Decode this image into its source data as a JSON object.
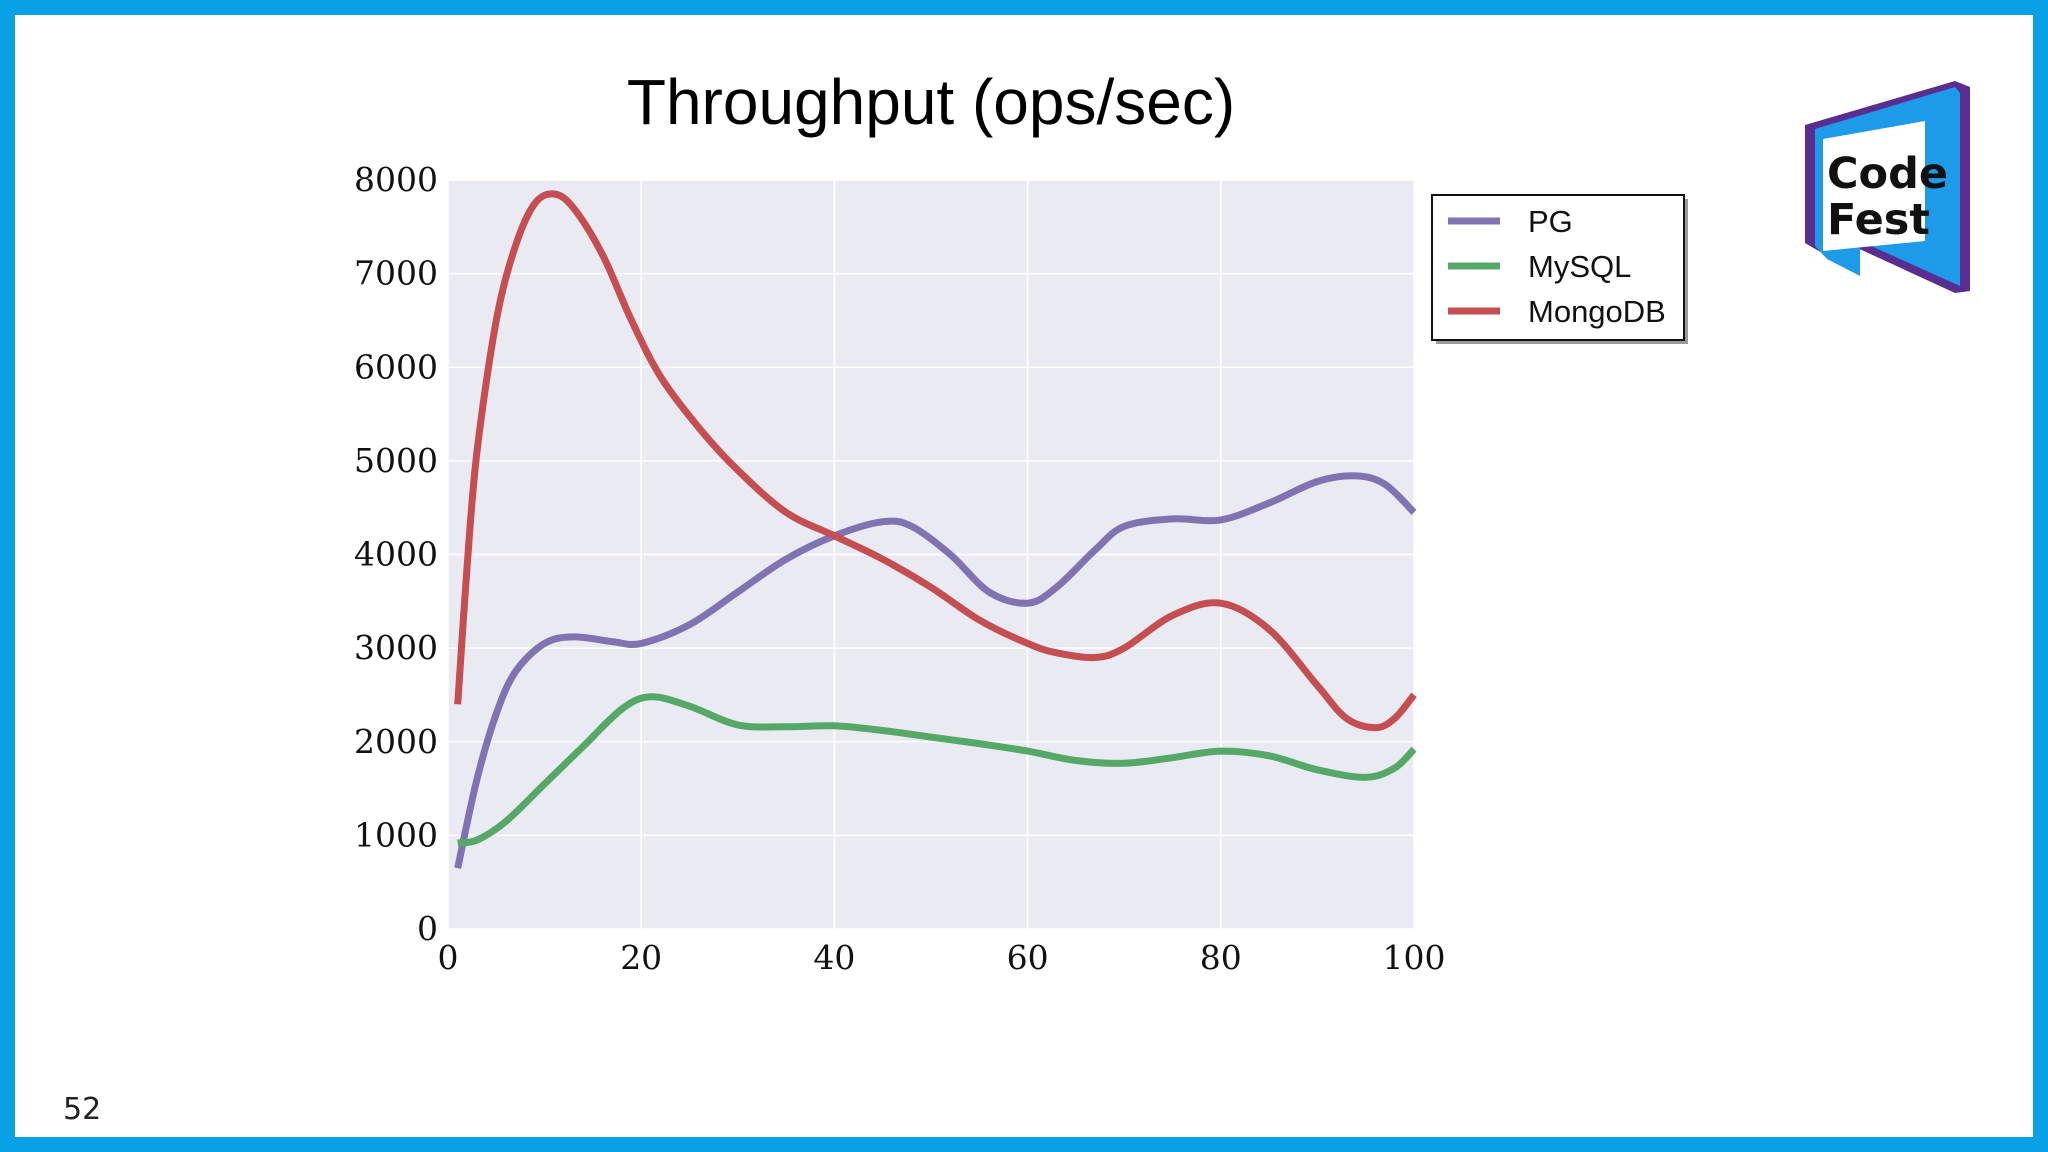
{
  "page": {
    "number": "52"
  },
  "logo": {
    "line1": "Code",
    "line2": "Fest"
  },
  "chart_data": {
    "type": "line",
    "title": "Throughput (ops/sec)",
    "xlabel": "",
    "ylabel": "",
    "xlim": [
      0,
      100
    ],
    "ylim": [
      0,
      8000
    ],
    "xticks": [
      "0",
      "20",
      "40",
      "60",
      "80",
      "100"
    ],
    "yticks": [
      "0",
      "1000",
      "2000",
      "3000",
      "4000",
      "5000",
      "6000",
      "7000",
      "8000"
    ],
    "grid": true,
    "legend_position": "upper-right-outside",
    "series": [
      {
        "name": "PG",
        "color": "#8172b2",
        "x": [
          1,
          3,
          5,
          7,
          10,
          13,
          17,
          20,
          25,
          30,
          35,
          40,
          45,
          48,
          52,
          56,
          60,
          63,
          67,
          70,
          75,
          80,
          85,
          90,
          94,
          97,
          100
        ],
        "y": [
          650,
          1600,
          2300,
          2750,
          3050,
          3120,
          3070,
          3050,
          3250,
          3600,
          3950,
          4200,
          4350,
          4300,
          4000,
          3600,
          3480,
          3650,
          4050,
          4300,
          4380,
          4370,
          4550,
          4780,
          4840,
          4750,
          4450
        ]
      },
      {
        "name": "MySQL",
        "color": "#55a868",
        "x": [
          1,
          3,
          6,
          10,
          14,
          18,
          21,
          25,
          30,
          35,
          40,
          45,
          50,
          55,
          60,
          65,
          70,
          75,
          80,
          85,
          90,
          95,
          98,
          100
        ],
        "y": [
          920,
          950,
          1150,
          1550,
          1950,
          2350,
          2480,
          2380,
          2180,
          2160,
          2170,
          2120,
          2050,
          1980,
          1900,
          1800,
          1770,
          1830,
          1900,
          1850,
          1700,
          1620,
          1720,
          1920
        ]
      },
      {
        "name": "MongoDB",
        "color": "#c44e52",
        "x": [
          1,
          2,
          3,
          5,
          7,
          9,
          11,
          13,
          16,
          19,
          22,
          26,
          30,
          35,
          40,
          45,
          50,
          55,
          60,
          63,
          67,
          70,
          75,
          80,
          85,
          90,
          93,
          96,
          98,
          100
        ],
        "y": [
          2400,
          3900,
          5100,
          6500,
          7300,
          7750,
          7850,
          7700,
          7200,
          6500,
          5900,
          5350,
          4900,
          4450,
          4200,
          3950,
          3650,
          3300,
          3050,
          2950,
          2900,
          3000,
          3350,
          3480,
          3200,
          2600,
          2250,
          2150,
          2250,
          2500
        ]
      }
    ]
  }
}
